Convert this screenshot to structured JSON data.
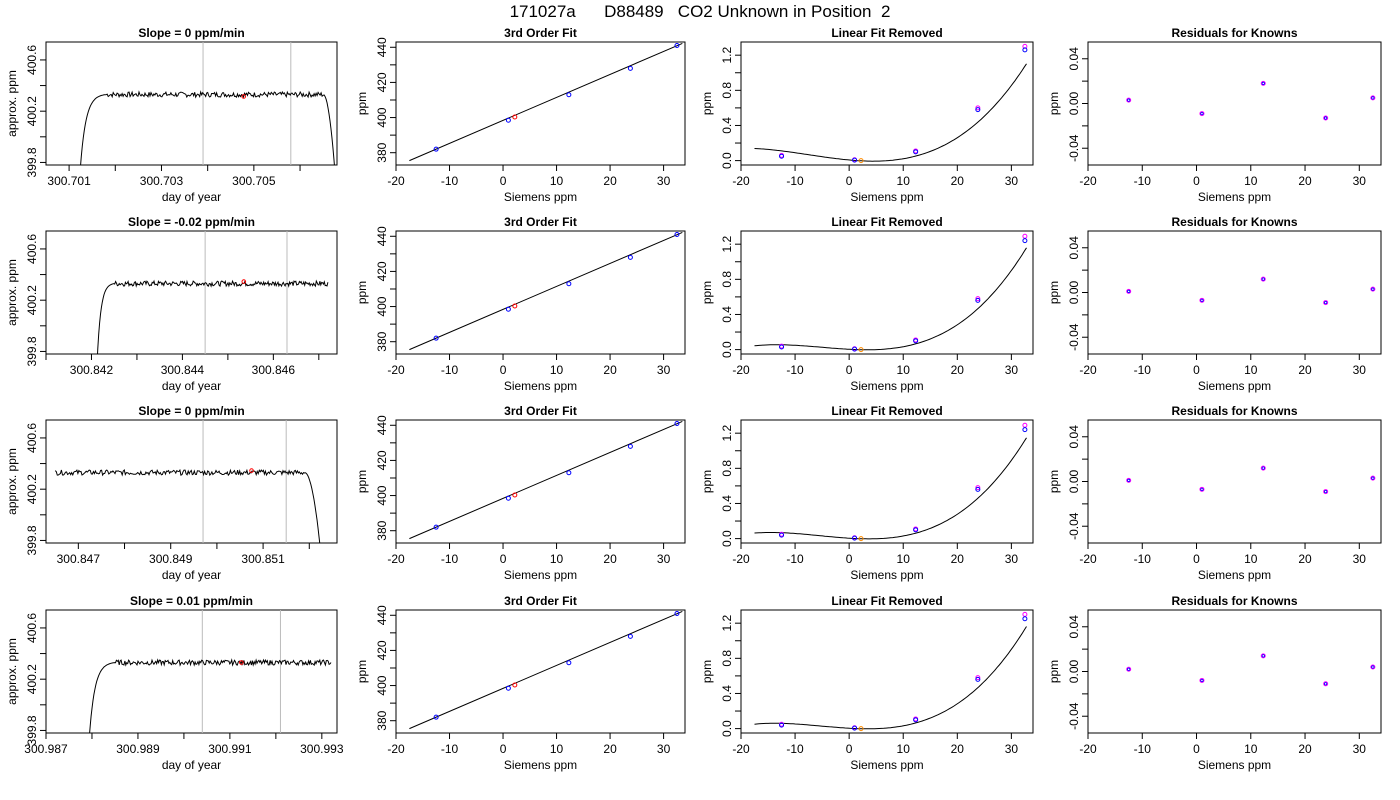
{
  "page": {
    "title": "171027a      D88489   CO2 Unknown in Position  2"
  },
  "style": {
    "line_color": "#000000",
    "marker_known_color": "#0000ff",
    "marker_ref_color": "#ff00ff",
    "unknown_color": "#ff0000",
    "orange_color": "#ff8c00",
    "vline_color": "#bbbbbb"
  },
  "labels": {
    "doy_xlabel": "day of year",
    "doy_ylabel": "approx. ppm",
    "siemens_xlabel": "Siemens ppm",
    "ppm_ylabel": "ppm",
    "fit_title": "3rd Order Fit",
    "linear_title": "Linear Fit Removed",
    "resid_title": "Residuals for Knowns"
  },
  "chart_data": [
    {
      "type": "line",
      "panel": "timeseries",
      "row": 1,
      "title": "Slope =  0  ppm/min",
      "xlabel": "day of year",
      "ylabel": "approx. ppm",
      "xlim": [
        300.7005,
        300.7068
      ],
      "ylim": [
        399.78,
        400.74
      ],
      "xticks": [
        300.701,
        300.703,
        300.705
      ],
      "xticklabels": [
        "300.701",
        "300.703",
        "300.705"
      ],
      "xminor": [
        300.702,
        300.704,
        300.706
      ],
      "yticks": [
        399.8,
        400.0,
        400.2,
        400.4,
        400.6
      ],
      "yticklabels": [
        "399.8",
        "",
        "400.2",
        "",
        "400.6"
      ],
      "vlines": [
        300.7039,
        300.7058
      ],
      "unknown_point": {
        "x": 300.70478,
        "y": 400.315
      },
      "trace": {
        "x_start": 300.7012,
        "x_rise": 300.7018,
        "x_plateau_end": 300.7065,
        "x_end": 300.7068,
        "base": 399.5,
        "plateau": 400.33,
        "end": 399.5,
        "noise": 0.02
      }
    },
    {
      "type": "line",
      "panel": "timeseries",
      "row": 2,
      "title": "Slope =  -0.02  ppm/min",
      "xlabel": "day of year",
      "ylabel": "approx. ppm",
      "xlim": [
        300.841,
        300.8474
      ],
      "ylim": [
        399.78,
        400.74
      ],
      "xticks": [
        300.842,
        300.844,
        300.846
      ],
      "xticklabels": [
        "300.842",
        "300.844",
        "300.846"
      ],
      "xminor": [
        300.841,
        300.843,
        300.845,
        300.847
      ],
      "yticks": [
        399.8,
        400.0,
        400.2,
        400.4,
        400.6
      ],
      "yticklabels": [
        "399.8",
        "",
        "400.2",
        "",
        "400.6"
      ],
      "vlines": [
        300.8445,
        300.8463
      ],
      "unknown_point": {
        "x": 300.84535,
        "y": 400.345
      },
      "trace": {
        "x_start": 300.8421,
        "x_rise": 300.8425,
        "x_plateau_end": 300.8472,
        "x_end": 300.8472,
        "base": 399.5,
        "plateau": 400.33,
        "end": 400.33,
        "noise": 0.02
      }
    },
    {
      "type": "line",
      "panel": "timeseries",
      "row": 3,
      "title": "Slope =  0  ppm/min",
      "xlabel": "day of year",
      "ylabel": "approx. ppm",
      "xlim": [
        300.8463,
        300.8526
      ],
      "ylim": [
        399.78,
        400.74
      ],
      "xticks": [
        300.847,
        300.849,
        300.851
      ],
      "xticklabels": [
        "300.847",
        "300.849",
        "300.851"
      ],
      "xminor": [
        300.848,
        300.85,
        300.852
      ],
      "yticks": [
        399.8,
        400.0,
        400.2,
        400.4,
        400.6
      ],
      "yticklabels": [
        "399.8",
        "",
        "400.2",
        "",
        "400.6"
      ],
      "vlines": [
        300.8497,
        300.8515
      ],
      "unknown_point": {
        "x": 300.85075,
        "y": 400.345
      },
      "trace": {
        "x_start": 300.8465,
        "x_rise": 300.8465,
        "x_plateau_end": 300.8519,
        "x_end": 300.8523,
        "base": 400.33,
        "plateau": 400.33,
        "end": 399.5,
        "noise": 0.02
      }
    },
    {
      "type": "line",
      "panel": "timeseries",
      "row": 4,
      "title": "Slope =  0.01  ppm/min",
      "xlabel": "day of year",
      "ylabel": "approx. ppm",
      "xlim": [
        300.987,
        300.99333
      ],
      "ylim": [
        399.78,
        400.74
      ],
      "xticks": [
        300.987,
        300.989,
        300.991,
        300.993
      ],
      "xticklabels": [
        "300.987",
        "300.989",
        "300.991",
        "300.993"
      ],
      "xminor": [
        300.988,
        300.99,
        300.992
      ],
      "yticks": [
        399.8,
        400.0,
        400.2,
        400.4,
        400.6
      ],
      "yticklabels": [
        "399.8",
        "",
        "400.2",
        "",
        "400.6"
      ],
      "vlines": [
        300.9904,
        300.9921
      ],
      "unknown_point": {
        "x": 300.99125,
        "y": 400.33
      },
      "trace": {
        "x_start": 300.9879,
        "x_rise": 300.9885,
        "x_plateau_end": 300.9932,
        "x_end": 300.9932,
        "base": 399.5,
        "plateau": 400.33,
        "end": 400.33,
        "noise": 0.02
      }
    },
    {
      "type": "scatter",
      "panel": "fit3",
      "row": 1,
      "title": "3rd Order Fit",
      "xlabel": "Siemens ppm",
      "ylabel": "ppm",
      "xlim": [
        -20,
        34
      ],
      "ylim": [
        373,
        443
      ],
      "xticks": [
        -20,
        -10,
        0,
        10,
        20,
        30
      ],
      "yticks": [
        380,
        400,
        420,
        440
      ],
      "yminor": [
        390,
        410,
        430
      ],
      "knowns": [
        {
          "x": -12.5,
          "y": 382
        },
        {
          "x": 1.0,
          "y": 398.5
        },
        {
          "x": 12.3,
          "y": 413
        },
        {
          "x": 23.8,
          "y": 428
        },
        {
          "x": 32.5,
          "y": 441
        }
      ],
      "unknown": {
        "x": 2.2,
        "y": 400.3
      },
      "curve": [
        [
          -17.5,
          375.5
        ],
        [
          33.5,
          442.2
        ]
      ]
    },
    {
      "type": "scatter",
      "panel": "fit3",
      "row": 2,
      "title": "3rd Order Fit",
      "xlabel": "Siemens ppm",
      "ylabel": "ppm",
      "xlim": [
        -20,
        34
      ],
      "ylim": [
        373,
        443
      ],
      "xticks": [
        -20,
        -10,
        0,
        10,
        20,
        30
      ],
      "yticks": [
        380,
        400,
        420,
        440
      ],
      "yminor": [
        390,
        410,
        430
      ],
      "knowns": [
        {
          "x": -12.5,
          "y": 382
        },
        {
          "x": 1.0,
          "y": 398.5
        },
        {
          "x": 12.3,
          "y": 413
        },
        {
          "x": 23.8,
          "y": 428
        },
        {
          "x": 32.5,
          "y": 441
        }
      ],
      "unknown": {
        "x": 2.2,
        "y": 400.3
      },
      "curve": [
        [
          -17.5,
          375.5
        ],
        [
          33.5,
          442.2
        ]
      ]
    },
    {
      "type": "scatter",
      "panel": "fit3",
      "row": 3,
      "title": "3rd Order Fit",
      "xlabel": "Siemens ppm",
      "ylabel": "ppm",
      "xlim": [
        -20,
        34
      ],
      "ylim": [
        373,
        443
      ],
      "xticks": [
        -20,
        -10,
        0,
        10,
        20,
        30
      ],
      "yticks": [
        380,
        400,
        420,
        440
      ],
      "yminor": [
        390,
        410,
        430
      ],
      "knowns": [
        {
          "x": -12.5,
          "y": 382
        },
        {
          "x": 1.0,
          "y": 398.5
        },
        {
          "x": 12.3,
          "y": 413
        },
        {
          "x": 23.8,
          "y": 428
        },
        {
          "x": 32.5,
          "y": 441
        }
      ],
      "unknown": {
        "x": 2.2,
        "y": 400.3
      },
      "curve": [
        [
          -17.5,
          375.5
        ],
        [
          33.5,
          442.2
        ]
      ]
    },
    {
      "type": "scatter",
      "panel": "fit3",
      "row": 4,
      "title": "3rd Order Fit",
      "xlabel": "Siemens ppm",
      "ylabel": "ppm",
      "xlim": [
        -20,
        34
      ],
      "ylim": [
        373,
        443
      ],
      "xticks": [
        -20,
        -10,
        0,
        10,
        20,
        30
      ],
      "yticks": [
        380,
        400,
        420,
        440
      ],
      "yminor": [
        390,
        410,
        430
      ],
      "knowns": [
        {
          "x": -12.5,
          "y": 382
        },
        {
          "x": 1.0,
          "y": 398.5
        },
        {
          "x": 12.3,
          "y": 413
        },
        {
          "x": 23.8,
          "y": 428
        },
        {
          "x": 32.5,
          "y": 441
        }
      ],
      "unknown": {
        "x": 2.2,
        "y": 400.3
      },
      "curve": [
        [
          -17.5,
          375.5
        ],
        [
          33.5,
          442.2
        ]
      ]
    },
    {
      "type": "scatter",
      "panel": "linear",
      "row": 1,
      "title": "Linear Fit Removed",
      "xlabel": "Siemens ppm",
      "ylabel": "ppm",
      "xlim": [
        -20,
        34
      ],
      "ylim": [
        -0.05,
        1.35
      ],
      "xticks": [
        -20,
        -10,
        0,
        10,
        20,
        30
      ],
      "yticks": [
        0.0,
        0.4,
        0.8,
        1.2
      ],
      "yminor": [
        0.2,
        0.6,
        1.0
      ],
      "knowns": [
        {
          "x": -12.5,
          "y": 0.05
        },
        {
          "x": 1.0,
          "y": 0.005
        },
        {
          "x": 12.3,
          "y": 0.1
        },
        {
          "x": 23.8,
          "y": 0.58
        },
        {
          "x": 32.5,
          "y": 1.26
        }
      ],
      "refs": [
        {
          "x": -12.5,
          "y": 0.06
        },
        {
          "x": 1.0,
          "y": 0.01
        },
        {
          "x": 12.3,
          "y": 0.11
        },
        {
          "x": 23.8,
          "y": 0.6
        },
        {
          "x": 32.5,
          "y": 1.3
        }
      ],
      "unknown": {
        "x": 2.2,
        "y": 0.0
      },
      "curve_coef": {
        "a": 0.0,
        "b": -0.004,
        "c": 0.00058,
        "d": 2.15e-05,
        "x0": 1.5
      },
      "curve_xrange": [
        -17.5,
        32.8
      ]
    },
    {
      "type": "scatter",
      "panel": "linear",
      "row": 2,
      "title": "Linear Fit Removed",
      "xlabel": "Siemens ppm",
      "ylabel": "ppm",
      "xlim": [
        -20,
        34
      ],
      "ylim": [
        -0.05,
        1.35
      ],
      "xticks": [
        -20,
        -10,
        0,
        10,
        20,
        30
      ],
      "yticks": [
        0.0,
        0.4,
        0.8,
        1.2
      ],
      "yminor": [
        0.2,
        0.6,
        1.0
      ],
      "knowns": [
        {
          "x": -12.5,
          "y": 0.03
        },
        {
          "x": 1.0,
          "y": 0.005
        },
        {
          "x": 12.3,
          "y": 0.1
        },
        {
          "x": 23.8,
          "y": 0.56
        },
        {
          "x": 32.5,
          "y": 1.24
        }
      ],
      "refs": [
        {
          "x": -12.5,
          "y": 0.04
        },
        {
          "x": 1.0,
          "y": 0.01
        },
        {
          "x": 12.3,
          "y": 0.11
        },
        {
          "x": 23.8,
          "y": 0.58
        },
        {
          "x": 32.5,
          "y": 1.29
        }
      ],
      "unknown": {
        "x": 2.2,
        "y": 0.0
      },
      "curve_coef": {
        "a": 0.0,
        "b": -0.002,
        "c": 0.00048,
        "d": 2.45e-05,
        "x0": 1.5
      },
      "curve_xrange": [
        -17.5,
        32.8
      ]
    },
    {
      "type": "scatter",
      "panel": "linear",
      "row": 3,
      "title": "Linear Fit Removed",
      "xlabel": "Siemens ppm",
      "ylabel": "ppm",
      "xlim": [
        -20,
        34
      ],
      "ylim": [
        -0.05,
        1.35
      ],
      "xticks": [
        -20,
        -10,
        0,
        10,
        20,
        30
      ],
      "yticks": [
        0.0,
        0.4,
        0.8,
        1.2
      ],
      "yminor": [
        0.2,
        0.6,
        1.0
      ],
      "knowns": [
        {
          "x": -12.5,
          "y": 0.04
        },
        {
          "x": 1.0,
          "y": 0.005
        },
        {
          "x": 12.3,
          "y": 0.1
        },
        {
          "x": 23.8,
          "y": 0.56
        },
        {
          "x": 32.5,
          "y": 1.24
        }
      ],
      "refs": [
        {
          "x": -12.5,
          "y": 0.05
        },
        {
          "x": 1.0,
          "y": 0.01
        },
        {
          "x": 12.3,
          "y": 0.11
        },
        {
          "x": 23.8,
          "y": 0.58
        },
        {
          "x": 32.5,
          "y": 1.29
        }
      ],
      "unknown": {
        "x": 2.2,
        "y": 0.0
      },
      "curve_coef": {
        "a": 0.0,
        "b": -0.0025,
        "c": 0.0005,
        "d": 2.4e-05,
        "x0": 1.5
      },
      "curve_xrange": [
        -17.5,
        32.8
      ]
    },
    {
      "type": "scatter",
      "panel": "linear",
      "row": 4,
      "title": "Linear Fit Removed",
      "xlabel": "Siemens ppm",
      "ylabel": "ppm",
      "xlim": [
        -20,
        34
      ],
      "ylim": [
        -0.05,
        1.35
      ],
      "xticks": [
        -20,
        -10,
        0,
        10,
        20,
        30
      ],
      "yticks": [
        0.0,
        0.4,
        0.8,
        1.2
      ],
      "yminor": [
        0.2,
        0.6,
        1.0
      ],
      "knowns": [
        {
          "x": -12.5,
          "y": 0.04
        },
        {
          "x": 1.0,
          "y": 0.005
        },
        {
          "x": 12.3,
          "y": 0.1
        },
        {
          "x": 23.8,
          "y": 0.56
        },
        {
          "x": 32.5,
          "y": 1.25
        }
      ],
      "refs": [
        {
          "x": -12.5,
          "y": 0.05
        },
        {
          "x": 1.0,
          "y": 0.01
        },
        {
          "x": 12.3,
          "y": 0.11
        },
        {
          "x": 23.8,
          "y": 0.58
        },
        {
          "x": 32.5,
          "y": 1.3
        }
      ],
      "unknown": {
        "x": 2.2,
        "y": 0.0
      },
      "curve_coef": {
        "a": 0.0,
        "b": -0.0022,
        "c": 0.00049,
        "d": 2.45e-05,
        "x0": 1.5
      },
      "curve_xrange": [
        -17.5,
        32.8
      ]
    },
    {
      "type": "scatter",
      "panel": "resid",
      "row": 1,
      "title": "Residuals for Knowns",
      "xlabel": "Siemens ppm",
      "ylabel": "ppm",
      "xlim": [
        -20,
        34
      ],
      "ylim": [
        -0.055,
        0.055
      ],
      "xticks": [
        -20,
        -10,
        0,
        10,
        20,
        30
      ],
      "yticks": [
        -0.04,
        0.0,
        0.04
      ],
      "yticklabels": [
        "-0.04",
        "0.00",
        "0.04"
      ],
      "yminor": [
        -0.02,
        0.02
      ],
      "points": [
        {
          "x": -12.5,
          "y": 0.003
        },
        {
          "x": 1.0,
          "y": -0.009
        },
        {
          "x": 12.3,
          "y": 0.018
        },
        {
          "x": 23.8,
          "y": -0.013
        },
        {
          "x": 32.5,
          "y": 0.005
        }
      ]
    },
    {
      "type": "scatter",
      "panel": "resid",
      "row": 2,
      "title": "Residuals for Knowns",
      "xlabel": "Siemens ppm",
      "ylabel": "ppm",
      "xlim": [
        -20,
        34
      ],
      "ylim": [
        -0.055,
        0.055
      ],
      "xticks": [
        -20,
        -10,
        0,
        10,
        20,
        30
      ],
      "yticks": [
        -0.04,
        0.0,
        0.04
      ],
      "yticklabels": [
        "-0.04",
        "0.00",
        "0.04"
      ],
      "yminor": [
        -0.02,
        0.02
      ],
      "points": [
        {
          "x": -12.5,
          "y": 0.001
        },
        {
          "x": 1.0,
          "y": -0.007
        },
        {
          "x": 12.3,
          "y": 0.012
        },
        {
          "x": 23.8,
          "y": -0.009
        },
        {
          "x": 32.5,
          "y": 0.003
        }
      ]
    },
    {
      "type": "scatter",
      "panel": "resid",
      "row": 3,
      "title": "Residuals for Knowns",
      "xlabel": "Siemens ppm",
      "ylabel": "ppm",
      "xlim": [
        -20,
        34
      ],
      "ylim": [
        -0.055,
        0.055
      ],
      "xticks": [
        -20,
        -10,
        0,
        10,
        20,
        30
      ],
      "yticks": [
        -0.04,
        0.0,
        0.04
      ],
      "yticklabels": [
        "-0.04",
        "0.00",
        "0.04"
      ],
      "yminor": [
        -0.02,
        0.02
      ],
      "points": [
        {
          "x": -12.5,
          "y": 0.001
        },
        {
          "x": 1.0,
          "y": -0.007
        },
        {
          "x": 12.3,
          "y": 0.012
        },
        {
          "x": 23.8,
          "y": -0.009
        },
        {
          "x": 32.5,
          "y": 0.003
        }
      ]
    },
    {
      "type": "scatter",
      "panel": "resid",
      "row": 4,
      "title": "Residuals for Knowns",
      "xlabel": "Siemens ppm",
      "ylabel": "ppm",
      "xlim": [
        -20,
        34
      ],
      "ylim": [
        -0.055,
        0.055
      ],
      "xticks": [
        -20,
        -10,
        0,
        10,
        20,
        30
      ],
      "yticks": [
        -0.04,
        0.0,
        0.04
      ],
      "yticklabels": [
        "-0.04",
        "0.00",
        "0.04"
      ],
      "yminor": [
        -0.02,
        0.02
      ],
      "points": [
        {
          "x": -12.5,
          "y": 0.002
        },
        {
          "x": 1.0,
          "y": -0.008
        },
        {
          "x": 12.3,
          "y": 0.014
        },
        {
          "x": 23.8,
          "y": -0.011
        },
        {
          "x": 32.5,
          "y": 0.004
        }
      ]
    }
  ]
}
